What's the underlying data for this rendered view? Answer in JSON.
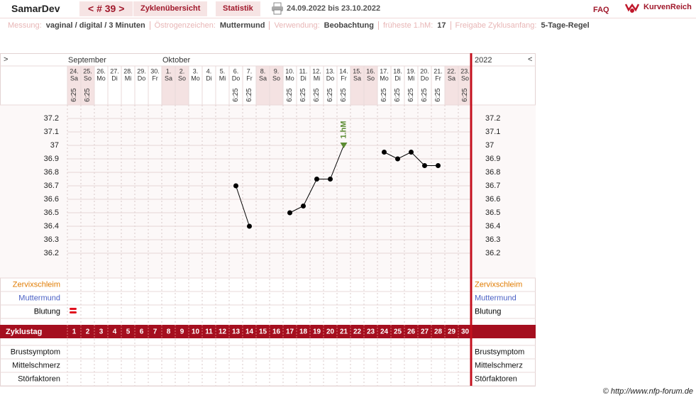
{
  "header": {
    "user": "SamarDev",
    "cycle": "< # 39 >",
    "tabs": [
      "Zyklenübersicht",
      "Statistik"
    ],
    "date_range": "24.09.2022 bis 23.10.2022",
    "faq": "FAQ",
    "brand": "KurvenReich"
  },
  "info": [
    {
      "label": "Messung:",
      "value": "vaginal / digital / 3 Minuten"
    },
    {
      "label": "Östrogenzeichen:",
      "value": "Muttermund"
    },
    {
      "label": "Verwendung:",
      "value": "Beobachtung"
    },
    {
      "label": "früheste 1.hM:",
      "value": 17
    },
    {
      "label": "Freigabe Zyklusanfang:",
      "value": "5-Tage-Regel"
    }
  ],
  "chart_data": {
    "type": "line",
    "nav_left": ">",
    "nav_right": "<",
    "year": "2022",
    "months": [
      {
        "label": "September",
        "x": 1
      },
      {
        "label": "Oktober",
        "x": 8
      }
    ],
    "x": [
      1,
      2,
      3,
      4,
      5,
      6,
      7,
      8,
      9,
      10,
      11,
      12,
      13,
      14,
      15,
      16,
      17,
      18,
      19,
      20,
      21,
      22,
      23,
      24,
      25,
      26,
      27,
      28,
      29,
      30
    ],
    "xlim": [
      0.5,
      30.5
    ],
    "dates": [
      "24.",
      "25.",
      "26.",
      "27.",
      "28.",
      "29.",
      "30.",
      "1.",
      "2.",
      "3.",
      "4.",
      "5.",
      "6.",
      "7.",
      "8.",
      "9.",
      "10.",
      "11.",
      "12.",
      "13.",
      "14.",
      "15.",
      "16.",
      "17.",
      "18.",
      "19.",
      "20.",
      "21.",
      "22.",
      "23."
    ],
    "weekdays": [
      "Sa",
      "So",
      "Mo",
      "Di",
      "Mi",
      "Do",
      "Fr",
      "Sa",
      "So",
      "Mo",
      "Di",
      "Mi",
      "Do",
      "Fr",
      "Sa",
      "So",
      "Mo",
      "Di",
      "Mi",
      "Do",
      "Fr",
      "Sa",
      "So",
      "Mo",
      "Di",
      "Mi",
      "Do",
      "Fr",
      "Sa",
      "So"
    ],
    "times": [
      "6:25",
      "6:25",
      null,
      null,
      null,
      null,
      null,
      null,
      null,
      null,
      null,
      null,
      "6:25",
      "6:25",
      null,
      null,
      "6:25",
      "6:25",
      "6:25",
      "6:25",
      "6:25",
      null,
      null,
      "6:25",
      "6:25",
      "6:25",
      "6:25",
      "6:25",
      null,
      "6:25"
    ],
    "series": [
      {
        "color": "#000000",
        "values": [
          null,
          null,
          null,
          null,
          null,
          null,
          null,
          null,
          null,
          null,
          null,
          null,
          36.7,
          36.4,
          null,
          null,
          36.5,
          36.55,
          36.75,
          36.75,
          37.0,
          null,
          null,
          36.95,
          36.9,
          36.95,
          36.85,
          36.85,
          null,
          null
        ]
      }
    ],
    "ylim": [
      36.0,
      37.3
    ],
    "yticks": [
      36.2,
      36.3,
      36.4,
      36.5,
      36.6,
      36.7,
      36.8,
      36.9,
      37,
      37.1,
      37.2
    ],
    "grid": true,
    "annotations": [
      {
        "text": "1.hM",
        "x": 21,
        "color": "#5b8c32"
      }
    ],
    "observation_rows": [
      {
        "label": "Zervixschleim",
        "color": "#e07b00"
      },
      {
        "label": "Muttermund",
        "color": "#4a5fc4"
      },
      {
        "label": "Blutung",
        "color": "#000000"
      }
    ],
    "cycle_label": "Zyklustag",
    "symptom_rows": [
      "Brustsymptom",
      "Mittelschmerz",
      "Störfaktoren"
    ]
  },
  "footer": "© http://www.nfp-forum.de"
}
